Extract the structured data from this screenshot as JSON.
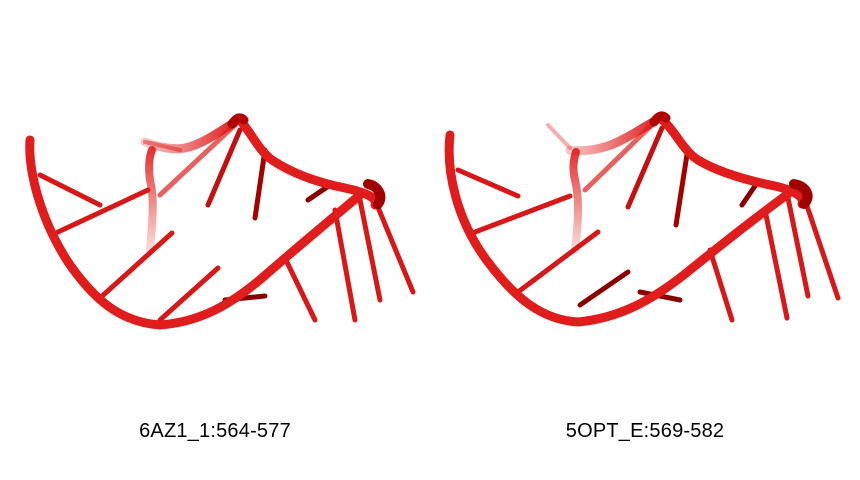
{
  "colors": {
    "background": "#ffffff",
    "backbone": "#e01c1c",
    "backbone_dark": "#b00000",
    "base_dark": "#8a0000",
    "caption_text": "#000000"
  },
  "panels": [
    {
      "caption": "6AZ1_1:564-577"
    },
    {
      "caption": "5OPT_E:569-582"
    }
  ]
}
